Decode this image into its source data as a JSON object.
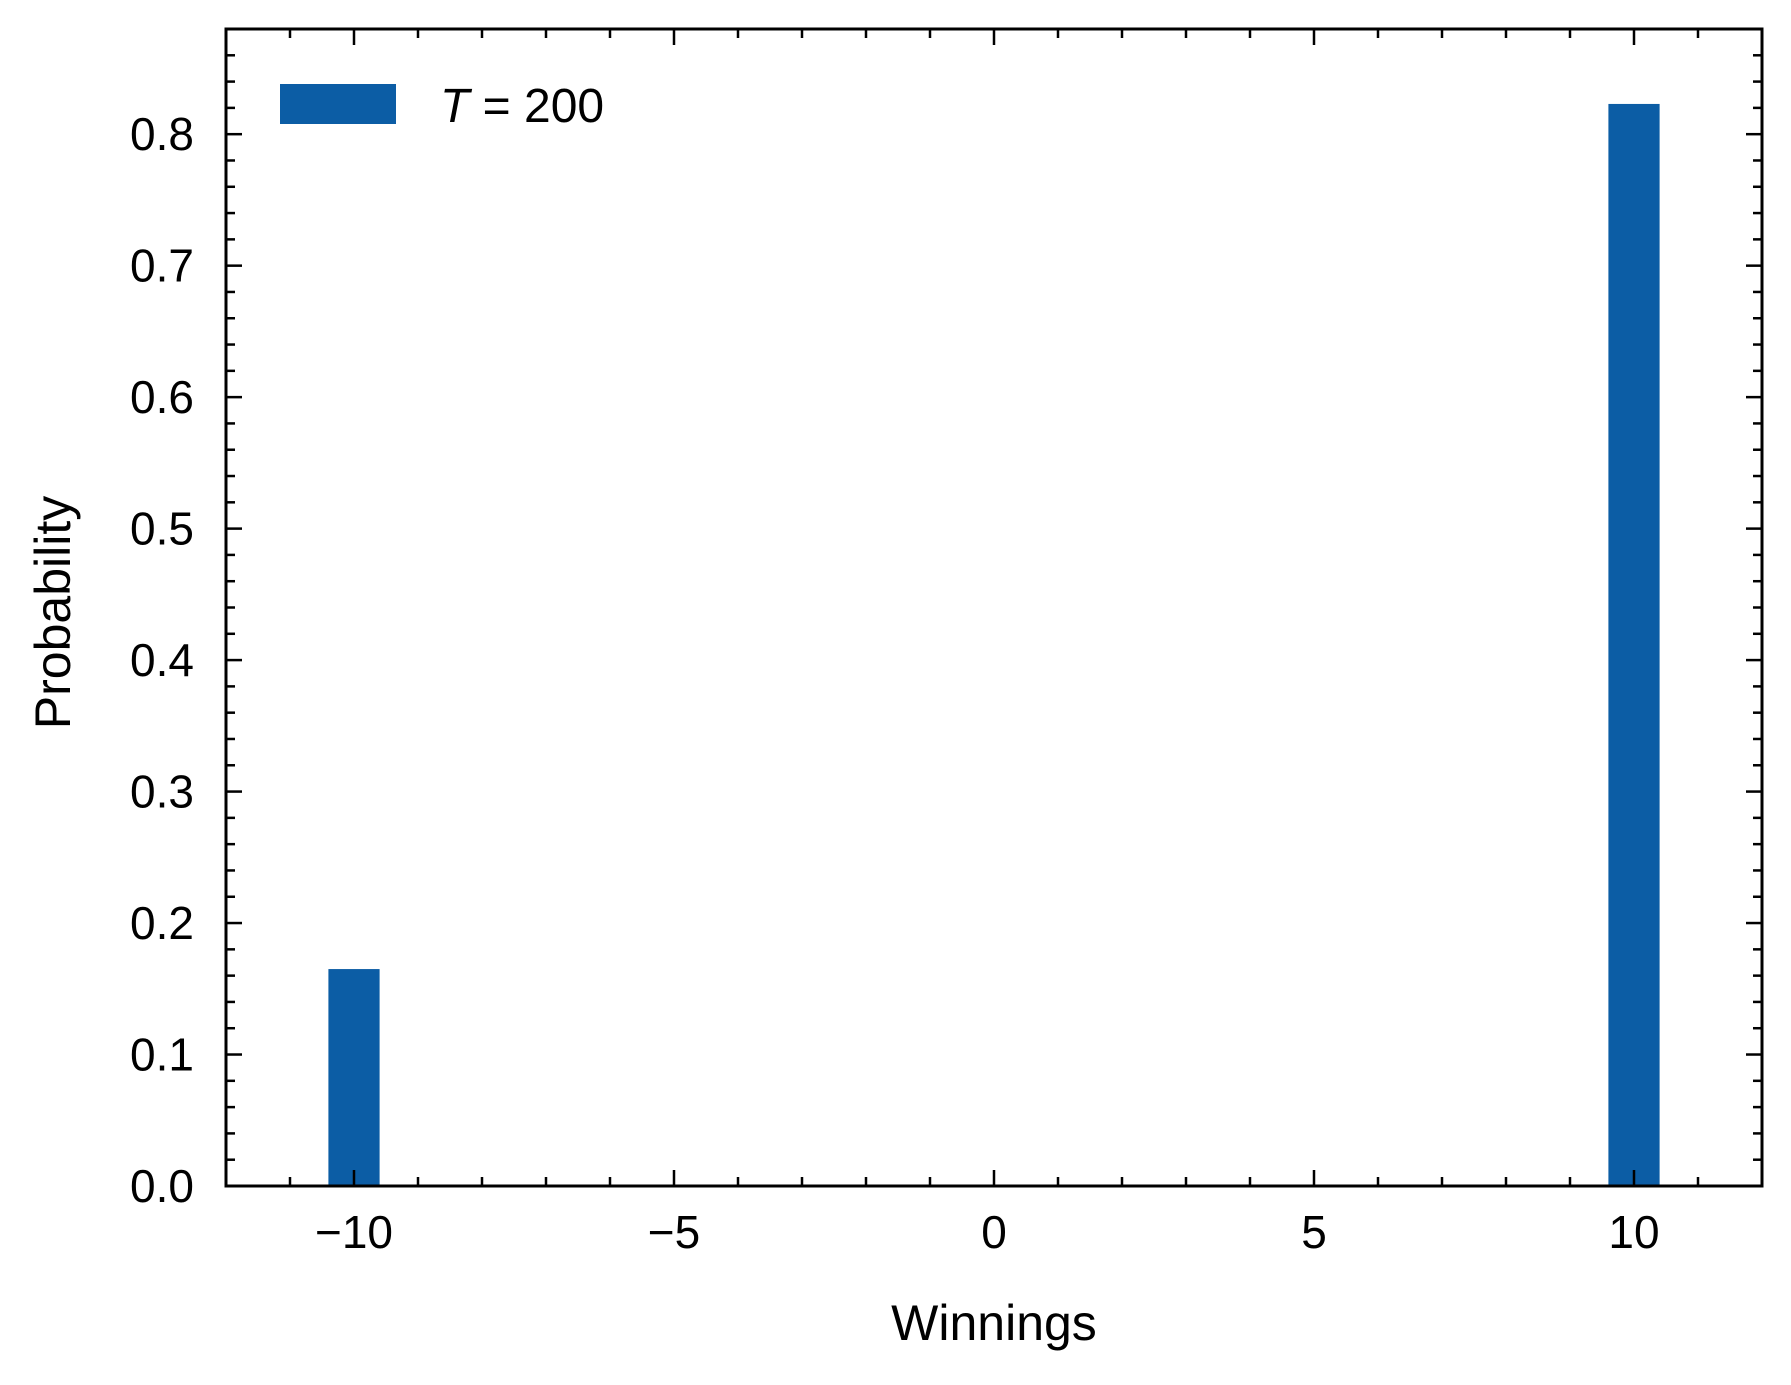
{
  "chart_data": {
    "type": "bar",
    "x": [
      -10,
      10
    ],
    "series": [
      {
        "name": "T = 200",
        "name_italic_part": "T",
        "name_rest": " = 200",
        "values": [
          0.165,
          0.823
        ],
        "color": "#0c5da5"
      }
    ],
    "bar_width": 0.8,
    "xlabel": "Winnings",
    "ylabel": "Probability",
    "xlim": [
      -12,
      12
    ],
    "ylim": [
      0,
      0.88
    ],
    "xticks": [
      -10,
      -5,
      0,
      5,
      10
    ],
    "xtick_labels": [
      "−10",
      "−5",
      "0",
      "5",
      "10"
    ],
    "yticks": [
      0.0,
      0.1,
      0.2,
      0.3,
      0.4,
      0.5,
      0.6,
      0.7,
      0.8
    ],
    "ytick_labels": [
      "0.0",
      "0.1",
      "0.2",
      "0.3",
      "0.4",
      "0.5",
      "0.6",
      "0.7",
      "0.8"
    ],
    "legend_position": "top-left",
    "grid": false
  }
}
